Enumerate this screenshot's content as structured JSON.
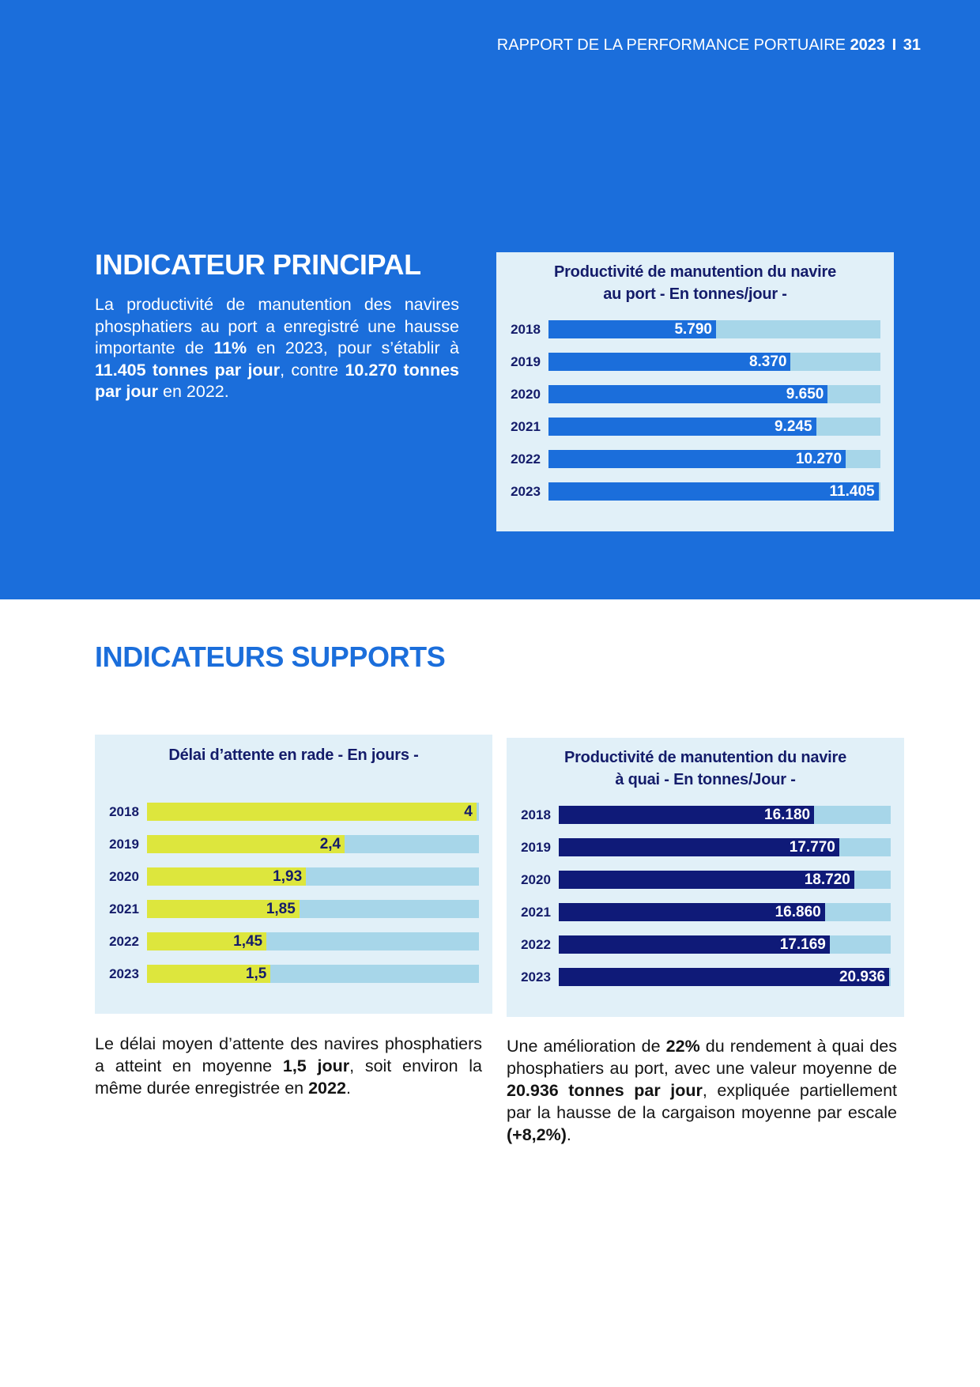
{
  "header": {
    "title": "RAPPORT DE LA PERFORMANCE PORTUAIRE",
    "year": "2023",
    "separator": "I",
    "page_number": "31"
  },
  "principal": {
    "heading": "INDICATEUR PRINCIPAL",
    "paragraph": [
      "La productivité de manutention des navires phosphatiers au port a enregistré une hausse importante de ",
      "11%",
      " en 2023, pour s’établir à ",
      "11.405 tonnes par jour",
      ", contre ",
      "10.270 tonnes par jour",
      " en 2022."
    ]
  },
  "supports": {
    "heading": "INDICATEURS SUPPORTS",
    "waiting_paragraph": [
      "Le délai moyen d’attente des navires phosphatiers a atteint en moyenne ",
      "1,5 jour",
      ", soit environ la même durée enregistrée en ",
      "2022",
      "."
    ],
    "quay_paragraph": [
      "Une amélioration de ",
      "22%",
      " du rendement à quai des phosphatiers au port, avec une valeur moyenne de ",
      "20.936 tonnes par jour",
      ", expliquée partiellement par la hausse de la cargaison moyenne par escale ",
      "(+8,2%)",
      "."
    ]
  },
  "theme": {
    "primary_blue": "#1b6edb",
    "navy": "#141c6a",
    "panel_background": "#e1f0f8",
    "body_text": "#141414"
  },
  "chart_data": [
    {
      "type": "bar",
      "orientation": "horizontal",
      "title": [
        "Productivité de manutention du navire",
        "au port - En tonnes/jour -"
      ],
      "categories": [
        "2018",
        "2019",
        "2020",
        "2021",
        "2022",
        "2023"
      ],
      "values": [
        5790,
        8370,
        9650,
        9245,
        10270,
        11405
      ],
      "value_labels": [
        "5.790",
        "8.370",
        "9.650",
        "9.245",
        "10.270",
        "11.405"
      ],
      "xlim": [
        0,
        11470
      ],
      "bar_color": "#1b6edb",
      "track_color": "#a7d6e9",
      "label_color": "#ffffff"
    },
    {
      "type": "bar",
      "orientation": "horizontal",
      "title": [
        "Délai d’attente en rade - En jours -"
      ],
      "categories": [
        "2018",
        "2019",
        "2020",
        "2021",
        "2022",
        "2023"
      ],
      "values": [
        4,
        2.4,
        1.93,
        1.85,
        1.45,
        1.5
      ],
      "value_labels": [
        "4",
        "2,4",
        "1,93",
        "1,85",
        "1,45",
        "1,5"
      ],
      "xlim": [
        0,
        4.03
      ],
      "bar_color": "#dde63d",
      "track_color": "#a7d6e9",
      "label_color": "#141c6a"
    },
    {
      "type": "bar",
      "orientation": "horizontal",
      "title": [
        "Productivité de manutention du navire",
        "à quai - En tonnes/Jour -"
      ],
      "categories": [
        "2018",
        "2019",
        "2020",
        "2021",
        "2022",
        "2023"
      ],
      "values": [
        16180,
        17770,
        18720,
        16860,
        17169,
        20936
      ],
      "value_labels": [
        "16.180",
        "17.770",
        "18.720",
        "16.860",
        "17.169",
        "20.936"
      ],
      "xlim": [
        0,
        21030
      ],
      "bar_color": "#0f1a78",
      "track_color": "#a7d6e9",
      "label_color": "#ffffff"
    }
  ]
}
